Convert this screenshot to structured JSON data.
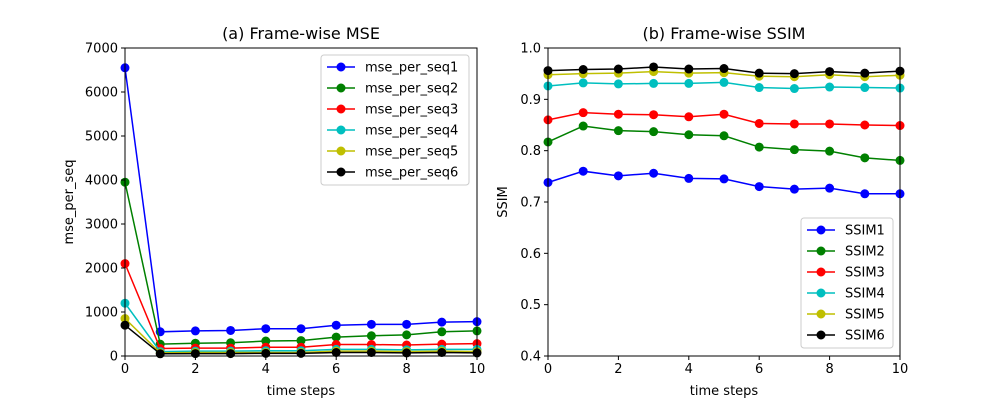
{
  "chart_data": [
    {
      "type": "line",
      "title": "(a) Frame-wise MSE",
      "xlabel": "time steps",
      "ylabel": "mse_per_seq",
      "xlim": [
        0,
        10
      ],
      "ylim": [
        0,
        7000
      ],
      "xticks": [
        0,
        2,
        4,
        6,
        8,
        10
      ],
      "yticks": [
        0,
        1000,
        2000,
        3000,
        4000,
        5000,
        6000,
        7000
      ],
      "legend": "top-right",
      "x": [
        0,
        1,
        2,
        3,
        4,
        5,
        6,
        7,
        8,
        9,
        10
      ],
      "series": [
        {
          "name": "mse_per_seq1",
          "color": "#0000ff",
          "values": [
            6550,
            550,
            570,
            580,
            620,
            620,
            700,
            720,
            720,
            770,
            780
          ]
        },
        {
          "name": "mse_per_seq2",
          "color": "#008000",
          "values": [
            3950,
            270,
            290,
            300,
            340,
            350,
            430,
            460,
            480,
            550,
            570
          ]
        },
        {
          "name": "mse_per_seq3",
          "color": "#ff0000",
          "values": [
            2100,
            170,
            180,
            180,
            200,
            200,
            260,
            260,
            250,
            270,
            280
          ]
        },
        {
          "name": "mse_per_seq4",
          "color": "#00bfbf",
          "values": [
            1200,
            100,
            110,
            110,
            120,
            120,
            150,
            150,
            140,
            150,
            150
          ]
        },
        {
          "name": "mse_per_seq5",
          "color": "#bfbf00",
          "values": [
            850,
            70,
            80,
            80,
            80,
            80,
            110,
            110,
            100,
            110,
            100
          ]
        },
        {
          "name": "mse_per_seq6",
          "color": "#000000",
          "values": [
            700,
            50,
            55,
            55,
            60,
            60,
            80,
            80,
            70,
            80,
            70
          ]
        }
      ]
    },
    {
      "type": "line",
      "title": "(b) Frame-wise SSIM",
      "xlabel": "time steps",
      "ylabel": "SSIM",
      "xlim": [
        0,
        10
      ],
      "ylim": [
        0.4,
        1.0
      ],
      "xticks": [
        0,
        2,
        4,
        6,
        8,
        10
      ],
      "yticks": [
        0.4,
        0.5,
        0.6,
        0.7,
        0.8,
        0.9,
        1.0
      ],
      "legend": "bottom-right",
      "x": [
        0,
        1,
        2,
        3,
        4,
        5,
        6,
        7,
        8,
        9,
        10
      ],
      "series": [
        {
          "name": "SSIM1",
          "color": "#0000ff",
          "values": [
            0.738,
            0.76,
            0.751,
            0.756,
            0.746,
            0.745,
            0.73,
            0.725,
            0.727,
            0.716,
            0.716
          ]
        },
        {
          "name": "SSIM2",
          "color": "#008000",
          "values": [
            0.817,
            0.848,
            0.839,
            0.837,
            0.831,
            0.829,
            0.807,
            0.802,
            0.799,
            0.786,
            0.781
          ]
        },
        {
          "name": "SSIM3",
          "color": "#ff0000",
          "values": [
            0.86,
            0.874,
            0.871,
            0.87,
            0.866,
            0.871,
            0.853,
            0.852,
            0.852,
            0.85,
            0.849
          ]
        },
        {
          "name": "SSIM4",
          "color": "#00bfbf",
          "values": [
            0.926,
            0.932,
            0.93,
            0.931,
            0.931,
            0.933,
            0.923,
            0.921,
            0.924,
            0.923,
            0.922
          ]
        },
        {
          "name": "SSIM5",
          "color": "#bfbf00",
          "values": [
            0.948,
            0.95,
            0.951,
            0.954,
            0.951,
            0.952,
            0.945,
            0.944,
            0.948,
            0.944,
            0.947
          ]
        },
        {
          "name": "SSIM6",
          "color": "#000000",
          "values": [
            0.956,
            0.958,
            0.959,
            0.963,
            0.959,
            0.96,
            0.951,
            0.95,
            0.954,
            0.951,
            0.955
          ]
        }
      ]
    }
  ]
}
